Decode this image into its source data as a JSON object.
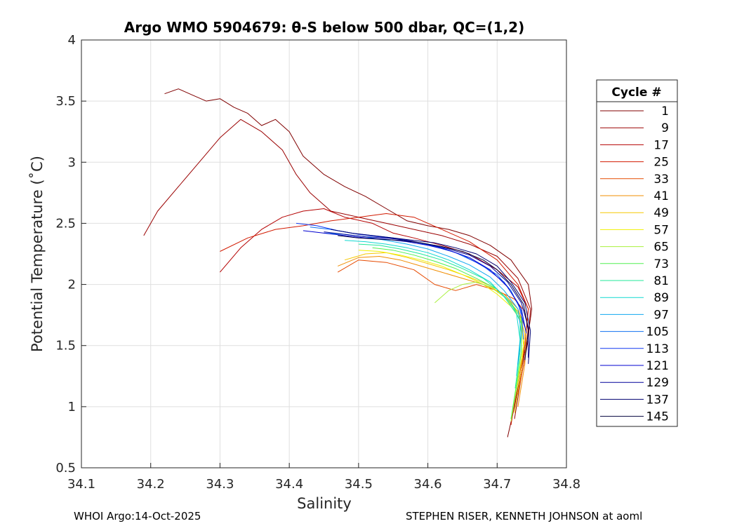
{
  "chart_data": {
    "type": "line",
    "title": "Argo WMO 5904679: θ-S below 500 dbar,  QC=(1,2)",
    "xlabel": "Salinity",
    "ylabel": "Potential Temperature (˚C)",
    "xlim": [
      34.1,
      34.8
    ],
    "ylim": [
      0.5,
      4
    ],
    "xticks": [
      "34.1",
      "34.2",
      "34.3",
      "34.4",
      "34.5",
      "34.6",
      "34.7",
      "34.8"
    ],
    "yticks": [
      "0.5",
      "1",
      "1.5",
      "2",
      "2.5",
      "3",
      "3.5",
      "4"
    ],
    "grid": true,
    "legend": {
      "title": "Cycle #",
      "position": "right",
      "entries": [
        {
          "label": "1",
          "color": "#800000"
        },
        {
          "label": "9",
          "color": "#9a0000"
        },
        {
          "label": "17",
          "color": "#b40000"
        },
        {
          "label": "25",
          "color": "#d21a00"
        },
        {
          "label": "33",
          "color": "#e64a00"
        },
        {
          "label": "41",
          "color": "#f08c00"
        },
        {
          "label": "49",
          "color": "#f5c800"
        },
        {
          "label": "57",
          "color": "#f0f000"
        },
        {
          "label": "65",
          "color": "#a8f03c"
        },
        {
          "label": "73",
          "color": "#50f050"
        },
        {
          "label": "81",
          "color": "#20e89a"
        },
        {
          "label": "89",
          "color": "#10d8d0"
        },
        {
          "label": "97",
          "color": "#10a8f0"
        },
        {
          "label": "105",
          "color": "#1070f0"
        },
        {
          "label": "113",
          "color": "#1038f0"
        },
        {
          "label": "121",
          "color": "#0000d0"
        },
        {
          "label": "129",
          "color": "#00009a"
        },
        {
          "label": "137",
          "color": "#000070"
        },
        {
          "label": "145",
          "color": "#00003c"
        }
      ]
    },
    "series": [
      {
        "name": "1",
        "x": [
          34.22,
          34.24,
          34.26,
          34.28,
          34.3,
          34.32,
          34.34,
          34.36,
          34.38,
          34.4,
          34.42,
          34.45,
          34.48,
          34.51,
          34.54,
          34.57,
          34.6,
          34.63,
          34.66,
          34.69,
          34.72,
          34.745,
          34.75,
          34.745,
          34.735,
          34.725,
          34.715
        ],
        "y": [
          3.56,
          3.6,
          3.55,
          3.5,
          3.52,
          3.45,
          3.4,
          3.3,
          3.35,
          3.25,
          3.05,
          2.9,
          2.8,
          2.72,
          2.62,
          2.52,
          2.48,
          2.45,
          2.4,
          2.32,
          2.2,
          2.0,
          1.8,
          1.6,
          1.3,
          1.0,
          0.75
        ]
      },
      {
        "name": "9",
        "x": [
          34.19,
          34.21,
          34.24,
          34.27,
          34.3,
          34.33,
          34.36,
          34.39,
          34.41,
          34.43,
          34.46,
          34.5,
          34.54,
          34.58,
          34.62,
          34.66,
          34.7,
          34.73,
          34.748,
          34.745,
          34.735,
          34.725
        ],
        "y": [
          2.4,
          2.6,
          2.8,
          3.0,
          3.2,
          3.35,
          3.25,
          3.1,
          2.9,
          2.75,
          2.6,
          2.55,
          2.5,
          2.45,
          2.4,
          2.33,
          2.23,
          2.05,
          1.8,
          1.55,
          1.25,
          0.9
        ]
      },
      {
        "name": "17",
        "x": [
          34.3,
          34.33,
          34.36,
          34.39,
          34.42,
          34.45,
          34.48,
          34.52,
          34.55,
          34.58,
          34.62,
          34.66,
          34.7,
          34.73,
          34.745,
          34.74,
          34.73
        ],
        "y": [
          2.1,
          2.3,
          2.45,
          2.55,
          2.6,
          2.62,
          2.55,
          2.5,
          2.42,
          2.38,
          2.32,
          2.25,
          2.12,
          1.98,
          1.8,
          1.5,
          1.1
        ]
      },
      {
        "name": "25",
        "x": [
          34.3,
          34.34,
          34.38,
          34.42,
          34.46,
          34.5,
          34.54,
          34.58,
          34.62,
          34.66,
          34.7,
          34.73,
          34.745,
          34.74,
          34.73,
          34.72
        ],
        "y": [
          2.27,
          2.38,
          2.45,
          2.48,
          2.52,
          2.55,
          2.58,
          2.55,
          2.45,
          2.35,
          2.2,
          2.0,
          1.8,
          1.5,
          1.2,
          0.85
        ]
      },
      {
        "name": "33",
        "x": [
          34.47,
          34.5,
          34.54,
          34.58,
          34.61,
          34.64,
          34.67,
          34.7,
          34.725,
          34.74,
          34.745,
          34.74,
          34.73
        ],
        "y": [
          2.1,
          2.2,
          2.18,
          2.12,
          2.0,
          1.95,
          2.0,
          1.95,
          1.88,
          1.78,
          1.65,
          1.4,
          1.1
        ]
      },
      {
        "name": "41",
        "x": [
          34.47,
          34.5,
          34.53,
          34.56,
          34.59,
          34.62,
          34.65,
          34.68,
          34.71,
          34.73,
          34.742,
          34.74,
          34.73
        ],
        "y": [
          2.15,
          2.22,
          2.23,
          2.2,
          2.15,
          2.1,
          2.05,
          2.0,
          1.92,
          1.8,
          1.62,
          1.35,
          1.0
        ]
      },
      {
        "name": "49",
        "x": [
          34.48,
          34.51,
          34.54,
          34.57,
          34.6,
          34.63,
          34.66,
          34.69,
          34.71,
          34.73,
          34.74,
          34.735,
          34.725
        ],
        "y": [
          2.2,
          2.25,
          2.26,
          2.22,
          2.17,
          2.12,
          2.06,
          1.99,
          1.9,
          1.78,
          1.6,
          1.3,
          0.95
        ]
      },
      {
        "name": "57",
        "x": [
          34.5,
          34.53,
          34.56,
          34.59,
          34.62,
          34.65,
          34.68,
          34.7,
          34.72,
          34.735,
          34.738,
          34.73,
          34.72
        ],
        "y": [
          2.28,
          2.27,
          2.24,
          2.2,
          2.15,
          2.08,
          2.0,
          1.92,
          1.82,
          1.7,
          1.5,
          1.2,
          0.9
        ]
      },
      {
        "name": "65",
        "x": [
          34.61,
          34.63,
          34.65,
          34.67,
          34.69,
          34.71,
          34.725,
          34.735,
          34.735,
          34.728,
          34.72
        ],
        "y": [
          1.85,
          1.95,
          2.0,
          2.02,
          1.98,
          1.9,
          1.8,
          1.68,
          1.45,
          1.15,
          0.88
        ]
      },
      {
        "name": "73",
        "x": [
          34.52,
          34.55,
          34.58,
          34.61,
          34.64,
          34.67,
          34.7,
          34.72,
          34.735,
          34.735,
          34.727,
          34.72
        ],
        "y": [
          2.3,
          2.28,
          2.24,
          2.19,
          2.13,
          2.05,
          1.96,
          1.85,
          1.72,
          1.45,
          1.15,
          0.9
        ]
      },
      {
        "name": "81",
        "x": [
          34.5,
          34.53,
          34.56,
          34.59,
          34.62,
          34.65,
          34.68,
          34.7,
          34.72,
          34.733,
          34.733,
          34.726
        ],
        "y": [
          2.33,
          2.32,
          2.29,
          2.25,
          2.2,
          2.13,
          2.05,
          1.96,
          1.85,
          1.7,
          1.45,
          1.15
        ]
      },
      {
        "name": "89",
        "x": [
          34.48,
          34.51,
          34.54,
          34.57,
          34.6,
          34.63,
          34.66,
          34.69,
          34.71,
          34.728,
          34.733,
          34.728
        ],
        "y": [
          2.36,
          2.35,
          2.33,
          2.3,
          2.26,
          2.2,
          2.12,
          2.02,
          1.9,
          1.76,
          1.55,
          1.25
        ]
      },
      {
        "name": "97",
        "x": [
          34.45,
          34.48,
          34.51,
          34.54,
          34.57,
          34.6,
          34.63,
          34.66,
          34.69,
          34.71,
          34.73,
          34.735,
          34.73
        ],
        "y": [
          2.42,
          2.41,
          2.39,
          2.36,
          2.33,
          2.29,
          2.23,
          2.16,
          2.06,
          1.95,
          1.8,
          1.6,
          1.35
        ]
      },
      {
        "name": "105",
        "x": [
          34.43,
          34.46,
          34.49,
          34.52,
          34.55,
          34.58,
          34.61,
          34.64,
          34.67,
          34.7,
          34.72,
          34.735,
          34.738
        ],
        "y": [
          2.47,
          2.45,
          2.42,
          2.4,
          2.38,
          2.35,
          2.31,
          2.26,
          2.18,
          2.08,
          1.95,
          1.78,
          1.55
        ]
      },
      {
        "name": "113",
        "x": [
          34.41,
          34.44,
          34.47,
          34.5,
          34.53,
          34.56,
          34.59,
          34.62,
          34.65,
          34.68,
          34.71,
          34.73,
          34.74
        ],
        "y": [
          2.5,
          2.48,
          2.44,
          2.41,
          2.39,
          2.37,
          2.34,
          2.3,
          2.24,
          2.15,
          2.02,
          1.85,
          1.65
        ]
      },
      {
        "name": "121",
        "x": [
          34.42,
          34.45,
          34.48,
          34.51,
          34.54,
          34.57,
          34.6,
          34.63,
          34.66,
          34.69,
          34.715,
          34.735,
          34.742
        ],
        "y": [
          2.44,
          2.42,
          2.4,
          2.38,
          2.37,
          2.35,
          2.32,
          2.28,
          2.22,
          2.12,
          1.98,
          1.8,
          1.6
        ]
      },
      {
        "name": "129",
        "x": [
          34.45,
          34.48,
          34.51,
          34.54,
          34.57,
          34.6,
          34.63,
          34.66,
          34.69,
          34.715,
          34.735,
          34.745,
          34.745
        ],
        "y": [
          2.43,
          2.41,
          2.39,
          2.38,
          2.36,
          2.33,
          2.29,
          2.24,
          2.15,
          2.02,
          1.85,
          1.65,
          1.4
        ]
      },
      {
        "name": "137",
        "x": [
          34.46,
          34.49,
          34.52,
          34.55,
          34.58,
          34.61,
          34.64,
          34.67,
          34.7,
          34.72,
          34.74,
          34.748,
          34.745
        ],
        "y": [
          2.45,
          2.42,
          2.4,
          2.38,
          2.36,
          2.34,
          2.3,
          2.25,
          2.15,
          2.02,
          1.85,
          1.62,
          1.35
        ]
      },
      {
        "name": "145",
        "x": [
          34.47,
          34.5,
          34.53,
          34.56,
          34.59,
          34.62,
          34.65,
          34.68,
          34.7,
          34.72,
          34.738,
          34.745,
          34.74
        ],
        "y": [
          2.4,
          2.38,
          2.37,
          2.36,
          2.34,
          2.31,
          2.27,
          2.2,
          2.12,
          2.0,
          1.84,
          1.62,
          1.38
        ]
      }
    ]
  },
  "footer": {
    "left": "WHOI Argo:14-Oct-2025",
    "right": "STEPHEN RISER, KENNETH JOHNSON at aoml"
  }
}
